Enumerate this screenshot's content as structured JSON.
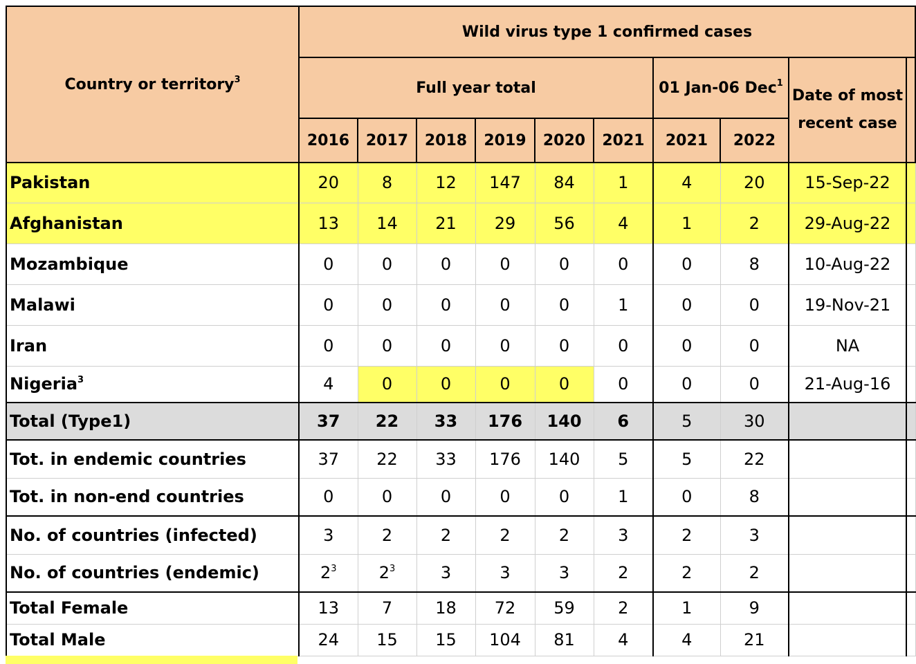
{
  "header": {
    "country": "Country or territory",
    "country_sup": "3",
    "main_title": "Wild virus type 1 confirmed cases",
    "full_year": "Full year total",
    "ytd": "01 Jan-06 Dec",
    "ytd_sup": "1",
    "recent_case": "Date of most recent case",
    "years_full": [
      "2016",
      "2017",
      "2018",
      "2019",
      "2020",
      "2021"
    ],
    "years_ytd": [
      "2021",
      "2022"
    ]
  },
  "rows": [
    {
      "label": "Pakistan",
      "sup": "",
      "values": [
        "20",
        "8",
        "12",
        "147",
        "84",
        "1",
        "4",
        "20"
      ],
      "sups": [
        "",
        "",
        "",
        "",
        "",
        "",
        "",
        ""
      ],
      "date": "15-Sep-22"
    },
    {
      "label": "Afghanistan",
      "sup": "",
      "values": [
        "13",
        "14",
        "21",
        "29",
        "56",
        "4",
        "1",
        "2"
      ],
      "sups": [
        "",
        "",
        "",
        "",
        "",
        "",
        "",
        ""
      ],
      "date": "29-Aug-22"
    },
    {
      "label": "Mozambique",
      "sup": "",
      "values": [
        "0",
        "0",
        "0",
        "0",
        "0",
        "0",
        "0",
        "8"
      ],
      "sups": [
        "",
        "",
        "",
        "",
        "",
        "",
        "",
        ""
      ],
      "date": "10-Aug-22"
    },
    {
      "label": "Malawi",
      "sup": "",
      "values": [
        "0",
        "0",
        "0",
        "0",
        "0",
        "1",
        "0",
        "0"
      ],
      "sups": [
        "",
        "",
        "",
        "",
        "",
        "",
        "",
        ""
      ],
      "date": "19-Nov-21"
    },
    {
      "label": "Iran",
      "sup": "",
      "values": [
        "0",
        "0",
        "0",
        "0",
        "0",
        "0",
        "0",
        "0"
      ],
      "sups": [
        "",
        "",
        "",
        "",
        "",
        "",
        "",
        ""
      ],
      "date": "NA"
    },
    {
      "label": "Nigeria",
      "sup": "3",
      "values": [
        "4",
        "0",
        "0",
        "0",
        "0",
        "0",
        "0",
        "0"
      ],
      "sups": [
        "",
        "",
        "",
        "",
        "",
        "",
        "",
        ""
      ],
      "date": "21-Aug-16"
    },
    {
      "label": "Total (Type1)",
      "sup": "",
      "values": [
        "37",
        "22",
        "33",
        "176",
        "140",
        "6",
        "5",
        "30"
      ],
      "sups": [
        "",
        "",
        "",
        "",
        "",
        "",
        "",
        ""
      ],
      "date": ""
    },
    {
      "label": "Tot. in endemic countries",
      "sup": "",
      "values": [
        "37",
        "22",
        "33",
        "176",
        "140",
        "5",
        "5",
        "22"
      ],
      "sups": [
        "",
        "",
        "",
        "",
        "",
        "",
        "",
        ""
      ],
      "date": ""
    },
    {
      "label": "Tot. in non-end countries",
      "sup": "",
      "values": [
        "0",
        "0",
        "0",
        "0",
        "0",
        "1",
        "0",
        "8"
      ],
      "sups": [
        "",
        "",
        "",
        "",
        "",
        "",
        "",
        ""
      ],
      "date": ""
    },
    {
      "label": "No. of countries (infected)",
      "sup": "",
      "values": [
        "3",
        "2",
        "2",
        "2",
        "2",
        "3",
        "2",
        "3"
      ],
      "sups": [
        "",
        "",
        "",
        "",
        "",
        "",
        "",
        ""
      ],
      "date": ""
    },
    {
      "label": "No. of countries (endemic)",
      "sup": "",
      "values": [
        "2",
        "2",
        "3",
        "3",
        "3",
        "2",
        "2",
        "2"
      ],
      "sups": [
        "3",
        "3",
        "",
        "",
        "",
        "",
        "",
        ""
      ],
      "date": ""
    },
    {
      "label": "Total Female",
      "sup": "",
      "values": [
        "13",
        "7",
        "18",
        "72",
        "59",
        "2",
        "1",
        "9"
      ],
      "sups": [
        "",
        "",
        "",
        "",
        "",
        "",
        "",
        ""
      ],
      "date": ""
    },
    {
      "label": "Total Male",
      "sup": "",
      "values": [
        "24",
        "15",
        "15",
        "104",
        "81",
        "4",
        "4",
        "21"
      ],
      "sups": [
        "",
        "",
        "",
        "",
        "",
        "",
        "",
        ""
      ],
      "date": ""
    }
  ],
  "colors": {
    "header": "#f7cba3",
    "highlight": "#ffff66",
    "total_row": "#dcdcdc"
  }
}
